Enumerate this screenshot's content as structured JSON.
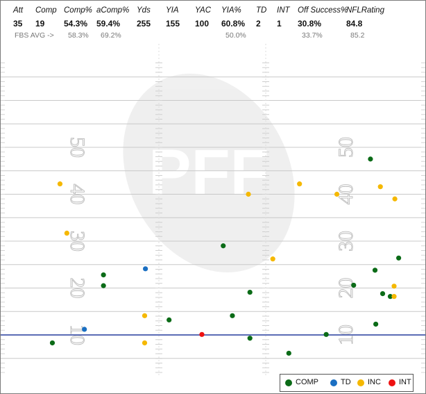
{
  "stats": {
    "columns": [
      {
        "header": "Att",
        "value": "35",
        "avg": ""
      },
      {
        "header": "Comp",
        "value": "19",
        "avg": ""
      },
      {
        "header": "Comp%",
        "value": "54.3%",
        "avg": "58.3%"
      },
      {
        "header": "aComp%",
        "value": "59.4%",
        "avg": "69.2%"
      },
      {
        "header": "Yds",
        "value": "255",
        "avg": ""
      },
      {
        "header": "YIA",
        "value": "155",
        "avg": ""
      },
      {
        "header": "YAC",
        "value": "100",
        "avg": ""
      },
      {
        "header": "YIA%",
        "value": "60.8%",
        "avg": "50.0%"
      },
      {
        "header": "TD",
        "value": "2",
        "avg": ""
      },
      {
        "header": "INT",
        "value": "1",
        "avg": ""
      },
      {
        "header": "Off Success%",
        "value": "30.8%",
        "avg": "33.7%"
      },
      {
        "header": "NFLRating",
        "value": "84.8",
        "avg": "85.2"
      }
    ],
    "avg_label": "FBS AVG ->"
  },
  "field": {
    "yard_numbers": [
      "50",
      "40",
      "30",
      "20",
      "10"
    ],
    "watermark": "PFF"
  },
  "colors": {
    "COMP": "#0b6b17",
    "TD": "#1a6fc2",
    "INC": "#f5b800",
    "INT": "#ee1111",
    "line_of_scrimmage": "#5b6cb5"
  },
  "legend": [
    "COMP",
    "TD",
    "INC",
    "INT"
  ],
  "chart_data": {
    "type": "scatter",
    "x": "field width from left sideline (yards)",
    "y": "air yards past line of scrimmage",
    "series": [
      {
        "name": "COMP",
        "points": [
          [
            47.2,
            37.5
          ],
          [
            27.9,
            19.0
          ],
          [
            12.2,
            12.8
          ],
          [
            12.2,
            10.5
          ],
          [
            47.8,
            13.8
          ],
          [
            31.4,
            9.1
          ],
          [
            45.0,
            10.6
          ],
          [
            48.8,
            8.8
          ],
          [
            49.8,
            8.2
          ],
          [
            50.9,
            16.4
          ],
          [
            47.9,
            2.3
          ],
          [
            29.1,
            4.1
          ],
          [
            20.8,
            3.2
          ],
          [
            41.4,
            0.1
          ],
          [
            31.4,
            -0.7
          ],
          [
            36.5,
            -3.9
          ],
          [
            5.5,
            -1.7
          ]
        ]
      },
      {
        "name": "TD",
        "points": [
          [
            17.7,
            14.1
          ],
          [
            9.7,
            1.2
          ]
        ]
      },
      {
        "name": "INC",
        "points": [
          [
            6.5,
            32.2
          ],
          [
            31.2,
            30.0
          ],
          [
            37.9,
            32.2
          ],
          [
            42.8,
            30.0
          ],
          [
            48.5,
            31.6
          ],
          [
            50.4,
            29.0
          ],
          [
            7.4,
            21.7
          ],
          [
            34.4,
            16.2
          ],
          [
            50.3,
            10.4
          ],
          [
            50.3,
            8.2
          ],
          [
            17.6,
            4.1
          ],
          [
            17.6,
            -1.7
          ]
        ]
      },
      {
        "name": "INT",
        "points": [
          [
            25.1,
            0.1
          ]
        ]
      }
    ],
    "xlim": [
      0,
      53.3
    ],
    "ylim": [
      -9,
      59
    ],
    "grid": true,
    "legend_position": "bottom-right"
  }
}
